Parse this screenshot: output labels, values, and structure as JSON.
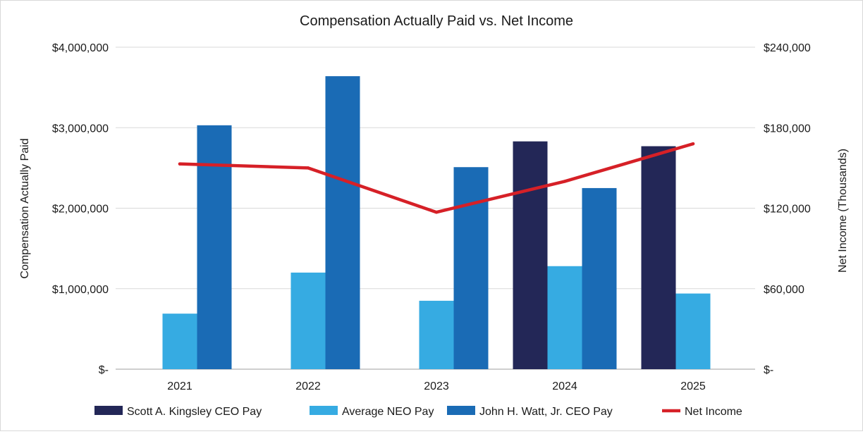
{
  "chart_data": {
    "type": "bar",
    "title": "Compensation Actually Paid vs. Net Income",
    "categories": [
      "2021",
      "2022",
      "2023",
      "2024",
      "2025"
    ],
    "ylabel": "Compensation Actually Paid",
    "y2label": "Net Income (Thousands)",
    "ylim": [
      0,
      4000000
    ],
    "y2lim": [
      0,
      240000
    ],
    "yticks": [
      {
        "value": 0,
        "label": "$-"
      },
      {
        "value": 1000000,
        "label": "$1,000,000"
      },
      {
        "value": 2000000,
        "label": "$2,000,000"
      },
      {
        "value": 3000000,
        "label": "$3,000,000"
      },
      {
        "value": 4000000,
        "label": "$4,000,000"
      }
    ],
    "y2ticks": [
      {
        "value": 0,
        "label": "$-"
      },
      {
        "value": 60000,
        "label": "$60,000"
      },
      {
        "value": 120000,
        "label": "$120,000"
      },
      {
        "value": 180000,
        "label": "$180,000"
      },
      {
        "value": 240000,
        "label": "$240,000"
      }
    ],
    "grid": true,
    "legend_position": "bottom",
    "series": [
      {
        "name": "Scott A. Kingsley CEO Pay",
        "kind": "bar",
        "axis": "left",
        "color": "#232757",
        "values": [
          null,
          null,
          null,
          2830000,
          2770000
        ]
      },
      {
        "name": "Average NEO Pay",
        "kind": "bar",
        "axis": "left",
        "color": "#36abe2",
        "values": [
          690000,
          1200000,
          850000,
          1280000,
          940000
        ]
      },
      {
        "name": "John H. Watt, Jr. CEO Pay",
        "kind": "bar",
        "axis": "left",
        "color": "#1a6bb5",
        "values": [
          3030000,
          3640000,
          2510000,
          2250000,
          null
        ]
      },
      {
        "name": "Net Income",
        "kind": "line",
        "axis": "right",
        "color": "#d62027",
        "values": [
          153000,
          150000,
          117000,
          140000,
          168000
        ]
      }
    ]
  }
}
